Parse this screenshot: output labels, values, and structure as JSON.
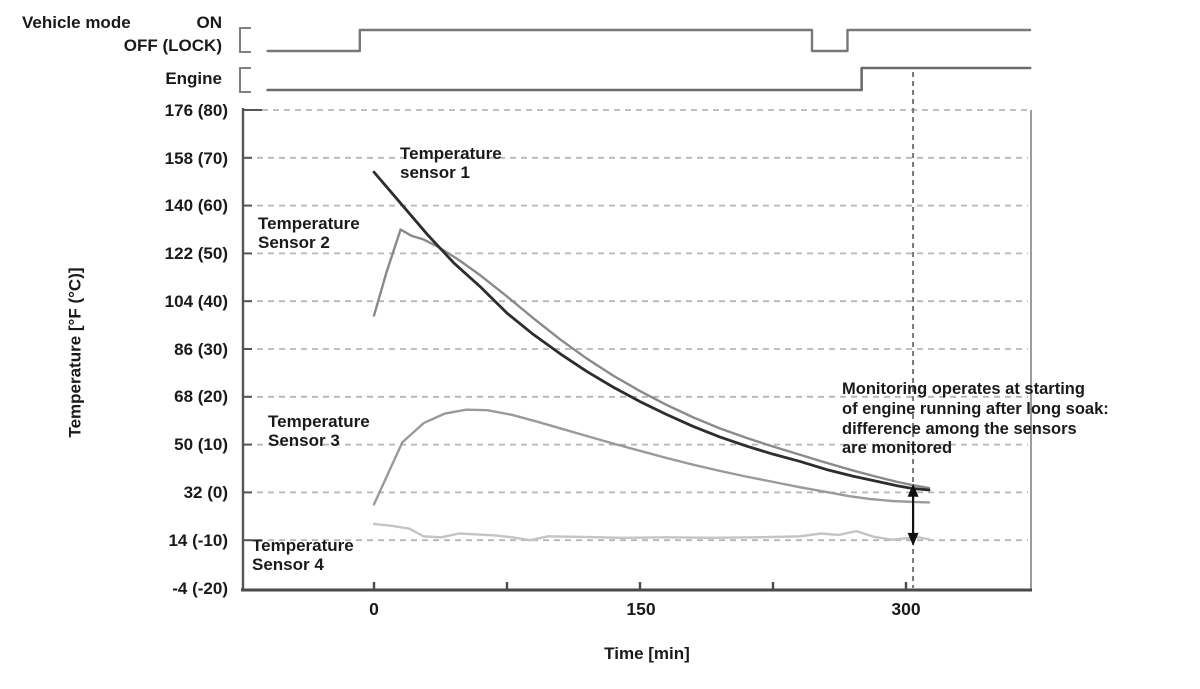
{
  "signals": {
    "vehicle_mode": {
      "label": "Vehicle mode",
      "on_label": "ON",
      "off_label": "OFF (LOCK)",
      "t_start": -60,
      "t_on": -8,
      "t_off2": 247,
      "t_on2": 267,
      "t_end": 370
    },
    "engine": {
      "label": "Engine",
      "t_start": -60,
      "t_on": 275,
      "t_end": 370
    }
  },
  "chart_data": {
    "type": "line",
    "title": "",
    "xlabel": "Time [min]",
    "ylabel": "Temperature [°F (°C)]",
    "xlim_min": [
      -75,
      372
    ],
    "ylim_c": [
      -20,
      80
    ],
    "grid": "horizontal-dashed",
    "legend_position": "inline-labels",
    "xticks": [
      {
        "t": 0,
        "label": "0"
      },
      {
        "t": 75,
        "label": ""
      },
      {
        "t": 150,
        "label": "150"
      },
      {
        "t": 225,
        "label": ""
      },
      {
        "t": 300,
        "label": "300"
      }
    ],
    "yticks": [
      {
        "c": 80,
        "label": "176 (80)"
      },
      {
        "c": 70,
        "label": "158 (70)"
      },
      {
        "c": 60,
        "label": "140 (60)"
      },
      {
        "c": 50,
        "label": "122 (50)"
      },
      {
        "c": 40,
        "label": "104 (40)"
      },
      {
        "c": 30,
        "label": "86 (30)"
      },
      {
        "c": 20,
        "label": "68 (20)"
      },
      {
        "c": 10,
        "label": "50 (10)"
      },
      {
        "c": 0,
        "label": "32 (0)"
      },
      {
        "c": -10,
        "label": "14 (-10)"
      },
      {
        "c": -20,
        "label": "-4 (-20)"
      }
    ],
    "series": [
      {
        "name": "Temperature sensor 1",
        "label": "Temperature\nsensor 1",
        "color": "#2d2d2d",
        "width": 2.8,
        "points": [
          [
            0,
            67
          ],
          [
            15,
            60.5
          ],
          [
            30,
            54
          ],
          [
            45,
            48
          ],
          [
            60,
            43
          ],
          [
            75,
            37.5
          ],
          [
            90,
            33
          ],
          [
            105,
            29
          ],
          [
            120,
            25.3
          ],
          [
            135,
            22
          ],
          [
            150,
            19
          ],
          [
            165,
            16.3
          ],
          [
            180,
            13.8
          ],
          [
            195,
            11.6
          ],
          [
            210,
            9.7
          ],
          [
            225,
            8
          ],
          [
            240,
            6.5
          ],
          [
            255,
            4.8
          ],
          [
            270,
            3.4
          ],
          [
            285,
            2.2
          ],
          [
            295,
            1.4
          ],
          [
            304,
            0.8
          ],
          [
            313,
            0.5
          ]
        ]
      },
      {
        "name": "Temperature Sensor 2",
        "label": "Temperature\nSensor 2",
        "color": "#8a8a8a",
        "width": 2.4,
        "points": [
          [
            0,
            37
          ],
          [
            7,
            46
          ],
          [
            15,
            55
          ],
          [
            21,
            53.7
          ],
          [
            28,
            52.9
          ],
          [
            36,
            51.4
          ],
          [
            48,
            48.6
          ],
          [
            60,
            45.4
          ],
          [
            75,
            41
          ],
          [
            90,
            36.4
          ],
          [
            105,
            32
          ],
          [
            120,
            28
          ],
          [
            135,
            24.4
          ],
          [
            150,
            21.2
          ],
          [
            165,
            18.3
          ],
          [
            180,
            15.7
          ],
          [
            195,
            13.4
          ],
          [
            210,
            11.4
          ],
          [
            225,
            9.6
          ],
          [
            240,
            7.9
          ],
          [
            255,
            6.2
          ],
          [
            270,
            4.6
          ],
          [
            282,
            3.4
          ],
          [
            295,
            2.2
          ],
          [
            304,
            1.5
          ],
          [
            313,
            0.9
          ]
        ]
      },
      {
        "name": "Temperature Sensor 3",
        "label": "Temperature\nSensor 3",
        "color": "#9a9a9a",
        "width": 2.4,
        "points": [
          [
            0,
            -2.5
          ],
          [
            8,
            4
          ],
          [
            16,
            10.5
          ],
          [
            28,
            14.5
          ],
          [
            40,
            16.5
          ],
          [
            52,
            17.3
          ],
          [
            64,
            17.2
          ],
          [
            78,
            16.2
          ],
          [
            92,
            14.8
          ],
          [
            106,
            13.3
          ],
          [
            120,
            11.8
          ],
          [
            135,
            10.2
          ],
          [
            150,
            8.7
          ],
          [
            165,
            7.2
          ],
          [
            180,
            5.8
          ],
          [
            195,
            4.5
          ],
          [
            210,
            3.3
          ],
          [
            225,
            2.2
          ],
          [
            240,
            1.1
          ],
          [
            255,
            0.1
          ],
          [
            268,
            -0.8
          ],
          [
            280,
            -1.4
          ],
          [
            292,
            -1.8
          ],
          [
            304,
            -2
          ],
          [
            313,
            -2.1
          ]
        ]
      },
      {
        "name": "Temperature Sensor 4",
        "label": "Temperature\nSensor 4",
        "color": "#c4c4c4",
        "width": 2.4,
        "points": [
          [
            0,
            -6.6
          ],
          [
            10,
            -7
          ],
          [
            20,
            -7.6
          ],
          [
            28,
            -9.2
          ],
          [
            38,
            -9.4
          ],
          [
            48,
            -8.6
          ],
          [
            58,
            -8.8
          ],
          [
            68,
            -9
          ],
          [
            78,
            -9.4
          ],
          [
            88,
            -10
          ],
          [
            98,
            -9.2
          ],
          [
            115,
            -9.3
          ],
          [
            140,
            -9.5
          ],
          [
            165,
            -9.4
          ],
          [
            190,
            -9.5
          ],
          [
            215,
            -9.4
          ],
          [
            240,
            -9.2
          ],
          [
            252,
            -8.6
          ],
          [
            262,
            -8.9
          ],
          [
            272,
            -8.1
          ],
          [
            282,
            -9.3
          ],
          [
            292,
            -9.9
          ],
          [
            300,
            -9.6
          ],
          [
            307,
            -9.4
          ],
          [
            313,
            -9.8
          ]
        ]
      }
    ],
    "monitor_line": {
      "t": 304
    },
    "arrow": {
      "t": 304,
      "top_c": 1.8,
      "bottom_c": -11.2
    },
    "annotation": "Monitoring operates at starting\nof engine running after long soak:\ndifference among the sensors\nare monitored",
    "colors": {
      "grid": "#b6b6b6",
      "axis": "#4a4a4a",
      "plot_right_border": "#9c9c9c",
      "signal_trace": "#787878",
      "monitor_dash": "#777777",
      "arrow": "#111111",
      "text": "#1a1a1a"
    }
  }
}
